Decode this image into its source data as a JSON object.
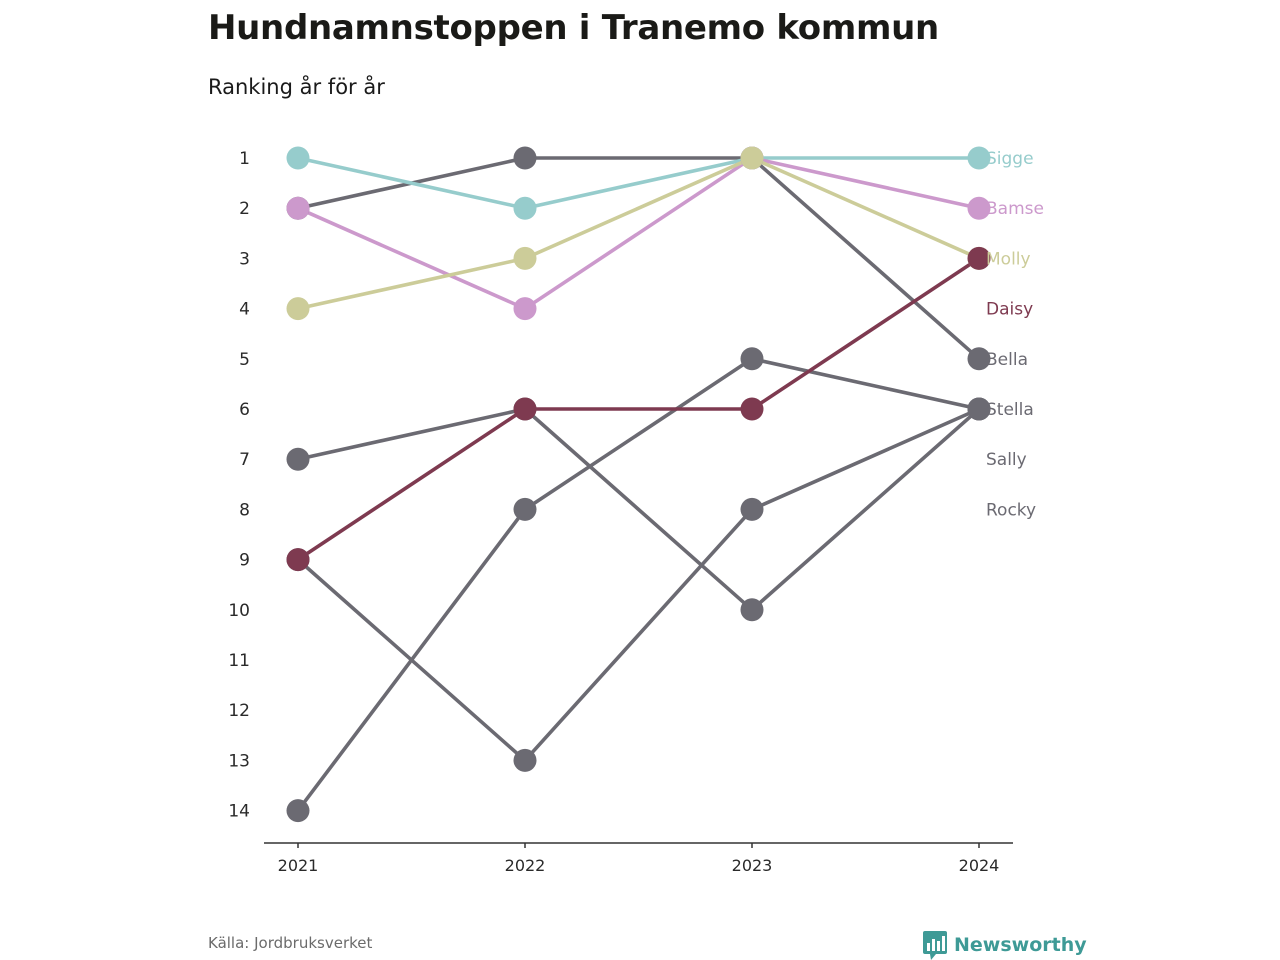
{
  "title": "Hundnamnstoppen i Tranemo kommun",
  "subtitle": "Ranking år för år",
  "source": "Källa: Jordbruksverket",
  "brand": {
    "name": "Newsworthy",
    "icon": "bar-chart-icon",
    "color": "#3e9a96"
  },
  "chart_data": {
    "type": "line",
    "title": "Hundnamnstoppen i Tranemo kommun",
    "subtitle": "Ranking år för år",
    "x": [
      "2021",
      "2022",
      "2023",
      "2024"
    ],
    "y_ticks": [
      "1",
      "2",
      "3",
      "4",
      "5",
      "6",
      "7",
      "8",
      "9",
      "10",
      "11",
      "12",
      "13",
      "14"
    ],
    "ylim": [
      1,
      14
    ],
    "y_reversed": true,
    "grid": false,
    "series": [
      {
        "name": "Sigge",
        "values": [
          1,
          2,
          1,
          1
        ],
        "color": "#96cccc"
      },
      {
        "name": "Bamse",
        "values": [
          2,
          4,
          1,
          2
        ],
        "color": "#cc99cc"
      },
      {
        "name": "Molly",
        "values": [
          4,
          3,
          1,
          3
        ],
        "color": "#cccc99"
      },
      {
        "name": "Daisy",
        "values": [
          9,
          6,
          6,
          3
        ],
        "color": "#7e3a50"
      },
      {
        "name": "Bella",
        "values": [
          2,
          1,
          1,
          5
        ],
        "color": "#6b6a72"
      },
      {
        "name": "Stella",
        "values": [
          7,
          6,
          10,
          6
        ],
        "color": "#6b6a72"
      },
      {
        "name": "Sally",
        "values": [
          9,
          13,
          8,
          6
        ],
        "color": "#6b6a72"
      },
      {
        "name": "Rocky",
        "values": [
          14,
          8,
          5,
          6
        ],
        "color": "#6b6a72"
      }
    ]
  }
}
